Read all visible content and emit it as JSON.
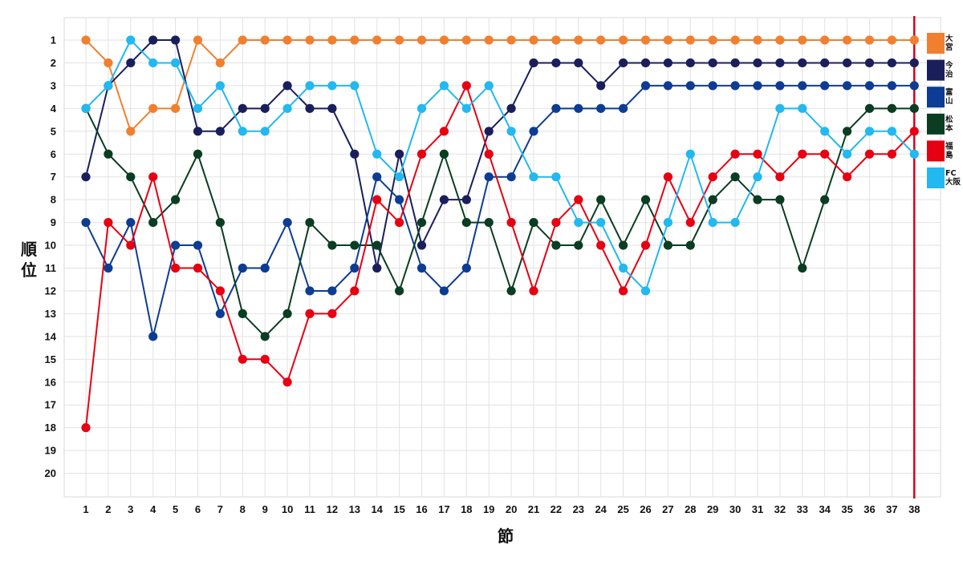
{
  "chart_data": {
    "type": "line",
    "title": "",
    "xlabel": "節",
    "ylabel": "順位",
    "x": [
      1,
      2,
      3,
      4,
      5,
      6,
      7,
      8,
      9,
      10,
      11,
      12,
      13,
      14,
      15,
      16,
      17,
      18,
      19,
      20,
      21,
      22,
      23,
      24,
      25,
      26,
      27,
      28,
      29,
      30,
      31,
      32,
      33,
      34,
      35,
      36,
      37,
      38
    ],
    "highlight_x": 38,
    "xlim": [
      1,
      38
    ],
    "ylim": [
      1,
      20
    ],
    "y_inverted": true,
    "grid": true,
    "legend": "right",
    "series": [
      {
        "name": "大宮",
        "name_lines": [
          "大",
          "宮"
        ],
        "color": "#F08030",
        "values": [
          1,
          2,
          5,
          4,
          4,
          1,
          2,
          1,
          1,
          1,
          1,
          1,
          1,
          1,
          1,
          1,
          1,
          1,
          1,
          1,
          1,
          1,
          1,
          1,
          1,
          1,
          1,
          1,
          1,
          1,
          1,
          1,
          1,
          1,
          1,
          1,
          1,
          1
        ]
      },
      {
        "name": "今治",
        "name_lines": [
          "今",
          "治"
        ],
        "color": "#1A1F5C",
        "values": [
          7,
          3,
          2,
          1,
          1,
          5,
          5,
          4,
          4,
          3,
          4,
          4,
          6,
          11,
          6,
          10,
          8,
          8,
          5,
          4,
          2,
          2,
          2,
          3,
          2,
          2,
          2,
          2,
          2,
          2,
          2,
          2,
          2,
          2,
          2,
          2,
          2,
          2
        ]
      },
      {
        "name": "富山",
        "name_lines": [
          "富",
          "山"
        ],
        "color": "#0D3C94",
        "values": [
          9,
          11,
          9,
          14,
          10,
          10,
          13,
          11,
          11,
          9,
          12,
          12,
          11,
          7,
          8,
          11,
          12,
          11,
          7,
          7,
          5,
          4,
          4,
          4,
          4,
          3,
          3,
          3,
          3,
          3,
          3,
          3,
          3,
          3,
          3,
          3,
          3,
          3
        ]
      },
      {
        "name": "松本",
        "name_lines": [
          "松",
          "本"
        ],
        "color": "#0A3D22",
        "values": [
          4,
          6,
          7,
          9,
          8,
          6,
          9,
          13,
          14,
          13,
          9,
          10,
          10,
          10,
          12,
          9,
          6,
          9,
          9,
          12,
          9,
          10,
          10,
          8,
          10,
          8,
          10,
          10,
          8,
          7,
          8,
          8,
          11,
          8,
          5,
          4,
          4,
          4
        ]
      },
      {
        "name": "福島",
        "name_lines": [
          "福",
          "島"
        ],
        "color": "#E60012",
        "values": [
          18,
          9,
          10,
          7,
          11,
          11,
          12,
          15,
          15,
          16,
          13,
          13,
          12,
          8,
          9,
          6,
          5,
          3,
          6,
          9,
          12,
          9,
          8,
          10,
          12,
          10,
          7,
          9,
          7,
          6,
          6,
          7,
          6,
          6,
          7,
          6,
          6,
          5
        ]
      },
      {
        "name": "FC大阪",
        "name_lines": [
          "FC",
          "大阪"
        ],
        "color": "#22B8F0",
        "values": [
          4,
          3,
          1,
          2,
          2,
          4,
          3,
          5,
          5,
          4,
          3,
          3,
          3,
          6,
          7,
          4,
          3,
          4,
          3,
          5,
          7,
          7,
          9,
          9,
          11,
          12,
          9,
          6,
          9,
          9,
          7,
          4,
          4,
          5,
          6,
          5,
          5,
          6
        ]
      }
    ]
  }
}
